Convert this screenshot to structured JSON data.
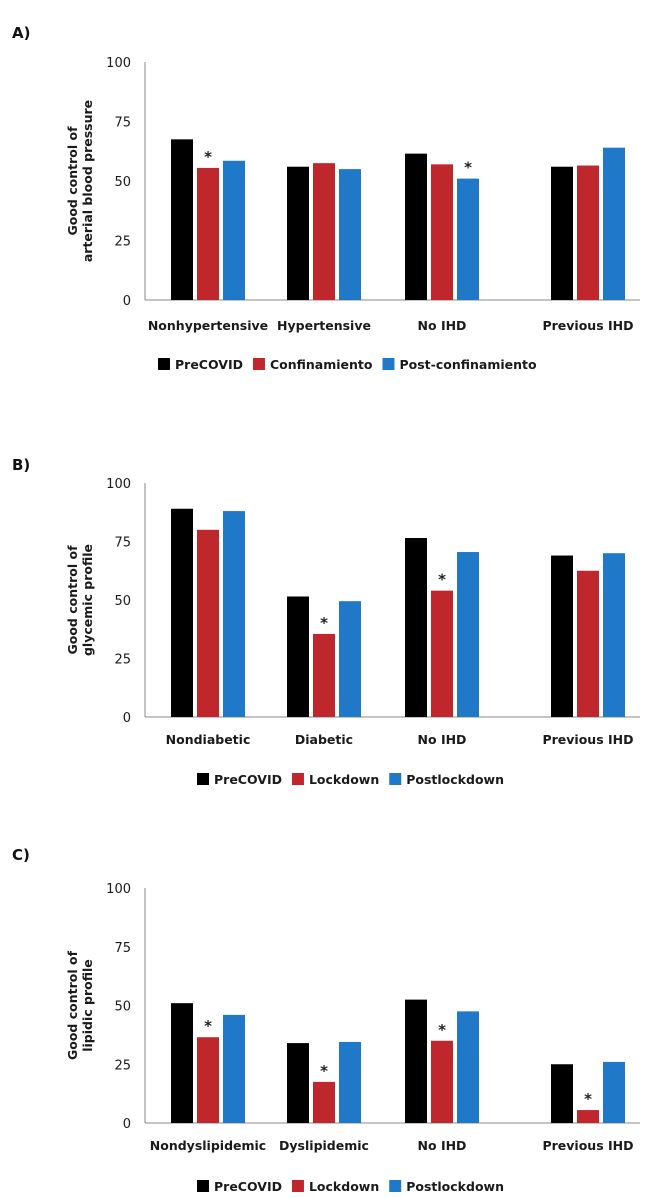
{
  "chart_data": [
    {
      "type": "bar",
      "panel_label": "A)",
      "ylabel": [
        "Good control of",
        "arterial blood pressure"
      ],
      "ylim": [
        0,
        100
      ],
      "yticks": [
        "0",
        "25",
        "50",
        "75",
        "100"
      ],
      "categories": [
        "Nonhypertensive",
        "Hypertensive",
        "No IHD",
        "Previous IHD"
      ],
      "series": [
        {
          "name": "PreCOVID",
          "color": "#000000",
          "values": [
            67.5,
            56,
            61.5,
            56
          ]
        },
        {
          "name": "Confinamiento",
          "color": "#c0272d",
          "values": [
            55.5,
            57.5,
            57,
            56.5
          ]
        },
        {
          "name": "Post-confinamiento",
          "color": "#1f78c8",
          "values": [
            58.5,
            55,
            51,
            64
          ]
        }
      ],
      "significance": [
        {
          "category": 0,
          "series": 1,
          "mark": "*"
        },
        {
          "category": 2,
          "series": 2,
          "mark": "*"
        }
      ],
      "grid": false,
      "legend_position": "bottom"
    },
    {
      "type": "bar",
      "panel_label": "B)",
      "ylabel": [
        "Good control of",
        "glycemic profile"
      ],
      "ylim": [
        0,
        100
      ],
      "yticks": [
        "0",
        "25",
        "50",
        "75",
        "100"
      ],
      "categories": [
        "Nondiabetic",
        "Diabetic",
        "No IHD",
        "Previous IHD"
      ],
      "series": [
        {
          "name": "PreCOVID",
          "color": "#000000",
          "values": [
            89,
            51.5,
            76.5,
            69
          ]
        },
        {
          "name": "Lockdown",
          "color": "#c0272d",
          "values": [
            80,
            35.5,
            54,
            62.5
          ]
        },
        {
          "name": "Postlockdown",
          "color": "#1f78c8",
          "values": [
            88,
            49.5,
            70.5,
            70
          ]
        }
      ],
      "significance": [
        {
          "category": 1,
          "series": 1,
          "mark": "*"
        },
        {
          "category": 2,
          "series": 1,
          "mark": "*"
        }
      ],
      "grid": false,
      "legend_position": "bottom"
    },
    {
      "type": "bar",
      "panel_label": "C)",
      "ylabel": [
        "Good control of",
        "lipidic profile"
      ],
      "ylim": [
        0,
        100
      ],
      "yticks": [
        "0",
        "25",
        "50",
        "75",
        "100"
      ],
      "categories": [
        "Nondyslipidemic",
        "Dyslipidemic",
        "No IHD",
        "Previous IHD"
      ],
      "series": [
        {
          "name": "PreCOVID",
          "color": "#000000",
          "values": [
            51,
            34,
            52.5,
            25
          ]
        },
        {
          "name": "Lockdown",
          "color": "#c0272d",
          "values": [
            36.5,
            17.5,
            35,
            5.5
          ]
        },
        {
          "name": "Postlockdown",
          "color": "#1f78c8",
          "values": [
            46,
            34.5,
            47.5,
            26
          ]
        }
      ],
      "significance": [
        {
          "category": 0,
          "series": 1,
          "mark": "*"
        },
        {
          "category": 1,
          "series": 1,
          "mark": "*"
        },
        {
          "category": 2,
          "series": 1,
          "mark": "*"
        },
        {
          "category": 3,
          "series": 1,
          "mark": "*"
        }
      ],
      "grid": false,
      "legend_position": "bottom"
    }
  ]
}
